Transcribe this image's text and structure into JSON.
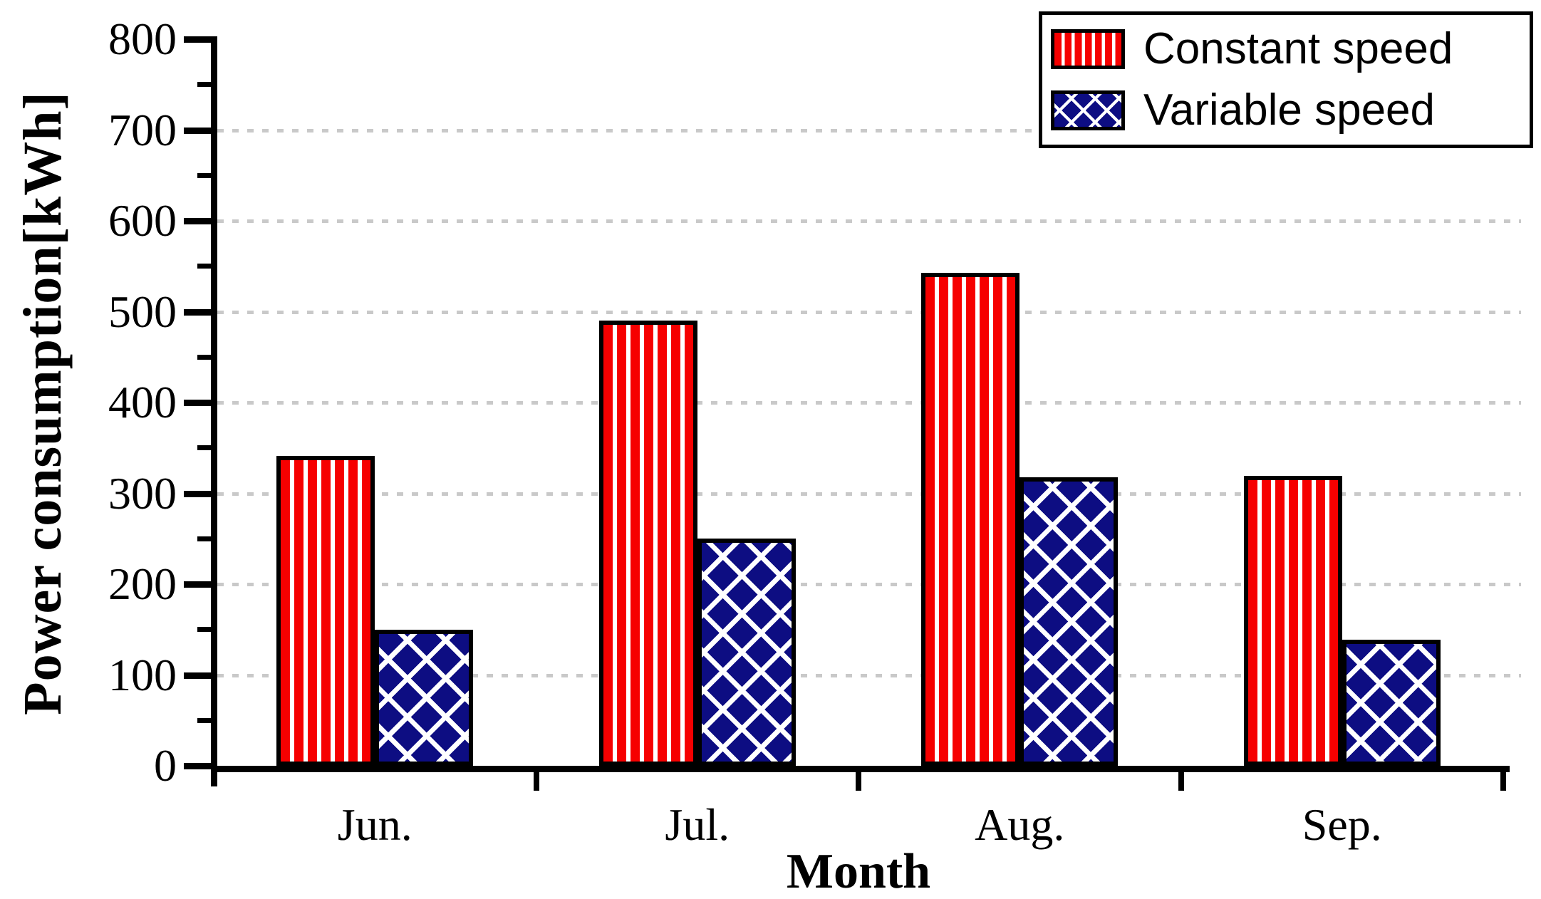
{
  "figure": {
    "background_color": "#ffffff",
    "axis_color": "#000000"
  },
  "chart_data": {
    "type": "bar",
    "categories": [
      "Jun.",
      "Jul.",
      "Aug.",
      "Sep."
    ],
    "series": [
      {
        "name": "Constant speed",
        "values": [
          341,
          490,
          543,
          319
        ],
        "fill": "#f60000",
        "pattern": "vertical-stripes",
        "stripe_color": "#ffffff"
      },
      {
        "name": "Variable speed",
        "values": [
          150,
          250,
          318,
          139
        ],
        "fill": "#0d0d82",
        "pattern": "diagonal-crosshatch",
        "stripe_color": "#ffffff"
      }
    ],
    "title": "",
    "xlabel": "Month",
    "ylabel": "Power consumption[kWh]",
    "ylim": [
      0,
      800
    ],
    "ytick_step": 100,
    "minor_tick_step": 50,
    "grid": "horizontal-dotted",
    "gridline_color": "#c9c9c9",
    "legend_position": "top-right"
  },
  "y_axis": {
    "tick_labels": [
      "800",
      "700",
      "600",
      "500",
      "400",
      "300",
      "200",
      "100",
      "0"
    ]
  },
  "legend": {
    "items": [
      {
        "label": "Constant speed"
      },
      {
        "label": "Variable speed"
      }
    ]
  }
}
